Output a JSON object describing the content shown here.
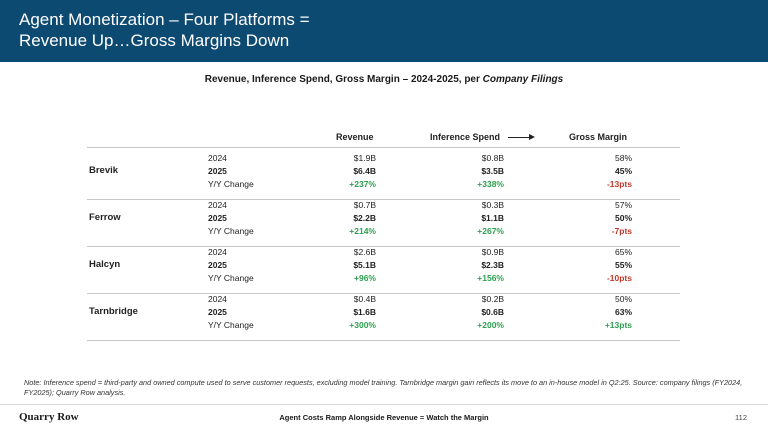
{
  "header": {
    "title_line1": "Agent Monetization – Four Platforms =",
    "title_line2": "Revenue Up…Gross Margins Down"
  },
  "subtitle": {
    "main": "Revenue, Inference Spend, Gross Margin – 2024-2025, per ",
    "italic": "Company Filings"
  },
  "columns": {
    "revenue": "Revenue",
    "inference": "Inference Spend",
    "margin": "Gross Margin"
  },
  "companies": [
    {
      "name": "Brevik",
      "rows": [
        {
          "label": "2024",
          "revenue": "$1.9B",
          "inference": "$0.8B",
          "margin": "58%"
        },
        {
          "label": "2025",
          "revenue": "$6.4B",
          "inference": "$3.5B",
          "margin": "45%"
        },
        {
          "label": "Y/Y Change",
          "revenue": "+237%",
          "inference": "+338%",
          "margin": "-13pts"
        }
      ]
    },
    {
      "name": "Ferrow",
      "rows": [
        {
          "label": "2024",
          "revenue": "$0.7B",
          "inference": "$0.3B",
          "margin": "57%"
        },
        {
          "label": "2025",
          "revenue": "$2.2B",
          "inference": "$1.1B",
          "margin": "50%"
        },
        {
          "label": "Y/Y Change",
          "revenue": "+214%",
          "inference": "+267%",
          "margin": "-7pts"
        }
      ]
    },
    {
      "name": "Halcyn",
      "rows": [
        {
          "label": "2024",
          "revenue": "$2.6B",
          "inference": "$0.9B",
          "margin": "65%"
        },
        {
          "label": "2025",
          "revenue": "$5.1B",
          "inference": "$2.3B",
          "margin": "55%"
        },
        {
          "label": "Y/Y Change",
          "revenue": "+96%",
          "inference": "+156%",
          "margin": "-10pts"
        }
      ]
    },
    {
      "name": "Tarnbridge",
      "rows": [
        {
          "label": "2024",
          "revenue": "$0.4B",
          "inference": "$0.2B",
          "margin": "50%"
        },
        {
          "label": "2025",
          "revenue": "$1.6B",
          "inference": "$0.6B",
          "margin": "63%"
        },
        {
          "label": "Y/Y Change",
          "revenue": "+300%",
          "inference": "+200%",
          "margin": "+13pts"
        }
      ]
    }
  ],
  "note": "Note: Inference spend = third-party and owned compute used to serve customer requests, excluding model training. Tarnbridge margin gain reflects its move to an in-house model in Q2:25. Source: company filings (FY2024, FY2025); Quarry Row analysis.",
  "footer": {
    "brand": "Quarry Row",
    "tagline": "Agent Costs Ramp Alongside Revenue = Watch the Margin",
    "page": "112"
  },
  "colors": {
    "header_bg": "#0d4a72",
    "positive": "#2e9e4f",
    "negative": "#c0392b"
  }
}
